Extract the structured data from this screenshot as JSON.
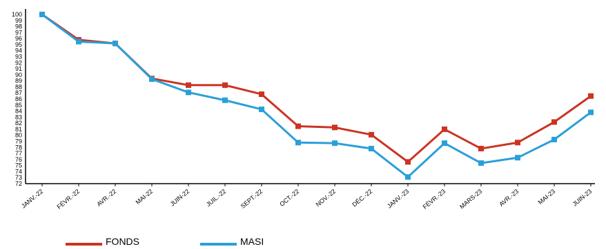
{
  "chart_data": {
    "type": "line",
    "categories": [
      "JANV.-22",
      "FÉVR.-22",
      "AVR.-22",
      "MAI-22",
      "JUIN-22",
      "JUIL.-22",
      "SEPT.-22",
      "OCT.-22",
      "NOV.-22",
      "DÉC.-22",
      "JANV.-23",
      "FÉVR.-23",
      "MARS-23",
      "AVR.-23",
      "MAI-23",
      "JUIN-23"
    ],
    "series": [
      {
        "name": "FONDS",
        "color": "#cc3322",
        "values": [
          100,
          95.8,
          95.2,
          89.4,
          88.3,
          88.3,
          86.8,
          81.5,
          81.3,
          80.1,
          75.6,
          81.0,
          77.8,
          78.8,
          82.2,
          86.5
        ]
      },
      {
        "name": "MASI",
        "color": "#2a9fd8",
        "values": [
          100,
          95.5,
          95.2,
          89.3,
          87.1,
          85.8,
          84.3,
          78.8,
          78.7,
          77.8,
          73.1,
          78.7,
          75.4,
          76.3,
          79.3,
          83.8
        ]
      }
    ],
    "ylim": [
      72,
      100
    ],
    "yticks": [
      "72",
      "73",
      "74",
      "75",
      "76",
      "77",
      "78",
      "79",
      "80",
      "81",
      "82",
      "83",
      "84",
      "85",
      "86",
      "87",
      "88",
      "89",
      "90",
      "91",
      "92",
      "93",
      "94",
      "95",
      "96",
      "97",
      "98",
      "99",
      "100"
    ],
    "grid": false,
    "legend": "bottom-left",
    "title": "",
    "xlabel": "",
    "ylabel": ""
  }
}
